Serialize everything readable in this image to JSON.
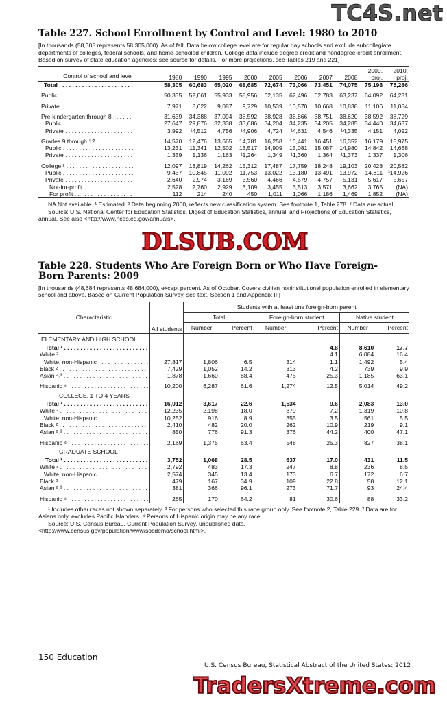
{
  "t227": {
    "title": "Table 227. School Enrollment by Control and Level: 1980 to 2010",
    "headnote": "[In thousands (58,305 represents 58,305,000). As of fall. Data below college level are for regular day schools and exclude subcollegiate departments of colleges, federal schools, and home-schooled children. College data include degree-credit and nondegree-credit enrollment. Based on survey of state education agencies; see source for details. For more projections, see Tables 219 and 221]",
    "stub_header": "Control of school and level",
    "columns": [
      "1980",
      "1990",
      "1995",
      "2000",
      "2005",
      "2006",
      "2007",
      "2008",
      "2009, proj.",
      "2010, proj."
    ],
    "rows": [
      {
        "label": "Total",
        "bold": true,
        "values": [
          "58,305",
          "60,683",
          "65,020",
          "68,685",
          "72,674",
          "73,066",
          "73,451",
          "74,075",
          "75,198",
          "75,286"
        ]
      },
      {
        "label": "Public",
        "gap": true,
        "values": [
          "50,335",
          "52,061",
          "55,933",
          "58,956",
          "62,135",
          "62,496",
          "62,783",
          "63,237",
          "64,092",
          "64,231"
        ]
      },
      {
        "label": "Private",
        "gap": true,
        "values": [
          "7,971",
          "8,622",
          "9,087",
          "9,729",
          "10,539",
          "10,570",
          "10,668",
          "10,838",
          "11,106",
          "11,054"
        ]
      },
      {
        "label": "Pre-kindergarten through 8",
        "gap": true,
        "values": [
          "31,639",
          "34,388",
          "37,094",
          "38,592",
          "38,928",
          "38,866",
          "38,751",
          "38,620",
          "38,592",
          "38,729"
        ]
      },
      {
        "label": "Public",
        "indent": 1,
        "values": [
          "27,647",
          "29,876",
          "32,338",
          "33,686",
          "34,204",
          "34,235",
          "34,205",
          "34,285",
          "34,440",
          "34,637"
        ]
      },
      {
        "label": "Private",
        "indent": 1,
        "values": [
          "3,992",
          "¹4,512",
          "4,756",
          "¹4,906",
          "4,724",
          "¹4,631",
          "4,546",
          "¹4,335",
          "4,151",
          "4,092"
        ]
      },
      {
        "label": "Grades 9 through 12",
        "gap": true,
        "values": [
          "14,570",
          "12,476",
          "13,665",
          "14,781",
          "16,258",
          "16,441",
          "16,451",
          "16,352",
          "16,179",
          "15,975"
        ]
      },
      {
        "label": "Public",
        "indent": 1,
        "values": [
          "13,231",
          "11,341",
          "12,502",
          "13,517",
          "14,909",
          "15,081",
          "15,087",
          "14,980",
          "14,842",
          "14,668"
        ]
      },
      {
        "label": "Private",
        "indent": 1,
        "values": [
          "1,339",
          "1,136",
          "1,163",
          "¹1,264",
          "1,349",
          "¹1,360",
          "1,364",
          "¹1,373",
          "1,337",
          "1,306"
        ]
      },
      {
        "label": "College ²",
        "gap": true,
        "values": [
          "12,097",
          "13,819",
          "14,262",
          "15,312",
          "17,487",
          "17,759",
          "18,248",
          "19,103",
          "20,428",
          "20,582"
        ]
      },
      {
        "label": "Public",
        "indent": 1,
        "values": [
          "9,457",
          "10,845",
          "11,092",
          "11,753",
          "13,022",
          "13,180",
          "13,491",
          "13,972",
          "14,811",
          "³14,926"
        ]
      },
      {
        "label": "Private",
        "indent": 1,
        "values": [
          "2,640",
          "2,974",
          "3,169",
          "3,560",
          "4,466",
          "4,579",
          "4,757",
          "5,131",
          "5,617",
          "5,657"
        ]
      },
      {
        "label": "Not-for-profit",
        "indent": 2,
        "values": [
          "2,528",
          "2,760",
          "2,929",
          "3,109",
          "3,455",
          "3,513",
          "3,571",
          "3,662",
          "3,765",
          "(NA)"
        ]
      },
      {
        "label": "For profit",
        "indent": 2,
        "values": [
          "112",
          "214",
          "240",
          "450",
          "1,011",
          "1,066",
          "1,186",
          "1,469",
          "1,852",
          "(NA)"
        ]
      }
    ],
    "footnote": "NA Not available. ¹ Estimated. ² Data beginning 2000, reflects new classification system. See footnote 1, Table 278. ³ Data are actual.",
    "source": "Source: U.S. National Center for Education Statistics, Digest of Education Statistics, annual, and Projections of Education Statistics, annual. See also <http://www.nces.ed.gov/annuals>."
  },
  "t228": {
    "title": "Table 228. Students Who Are Foreign Born or Who Have Foreign-Born Parents: 2009",
    "headnote": "[In thousands (48,684 represents 48,684,000), except percent. As of October. Covers civilian noninstitutional population enrolled in elementary school and above. Based on Current Population Survey, see  text, Section 1 and Appendix III]",
    "stub_header": "Characteristic",
    "all_students": "All students",
    "spanner": "Students with at least one foreign-born parent",
    "groups": [
      "Total",
      "Foreign-born student",
      "Native student"
    ],
    "sub": [
      "Number",
      "Percent"
    ],
    "sections": [
      {
        "name": "ELEMENTARY AND HIGH SCHOOL",
        "rows": [
          {
            "label": "Total ¹",
            "bold": true,
            "values": [
              "",
              "",
              "",
              "",
              "4.8",
              "8,610",
              "17.7"
            ]
          },
          {
            "label": "White ²",
            "values": [
              "",
              "",
              "",
              "",
              "4.1",
              "6,084",
              "16.4"
            ]
          },
          {
            "label": "White, non-Hispanic",
            "indent": 1,
            "values": [
              "27,817",
              "1,806",
              "6.5",
              "314",
              "1.1",
              "1,492",
              "5.4"
            ]
          },
          {
            "label": "Black ²",
            "values": [
              "7,429",
              "1,052",
              "14.2",
              "313",
              "4.2",
              "739",
              "9.9"
            ]
          },
          {
            "label": "Asian ²˒³",
            "values": [
              "1,878",
              "1,660",
              "88.4",
              "475",
              "25.3",
              "1,185",
              "63.1"
            ]
          },
          {
            "label": "Hispanic ⁴",
            "gap": true,
            "values": [
              "10,200",
              "6,287",
              "61.6",
              "1,274",
              "12.5",
              "5,014",
              "49.2"
            ]
          }
        ]
      },
      {
        "name": "COLLEGE, 1 TO 4 YEARS",
        "rows": [
          {
            "label": "Total ¹",
            "bold": true,
            "values": [
              "16,012",
              "3,617",
              "22.6",
              "1,534",
              "9.6",
              "2,083",
              "13.0"
            ]
          },
          {
            "label": "White ²",
            "values": [
              "12,235",
              "2,198",
              "18.0",
              "879",
              "7.2",
              "1,319",
              "10.8"
            ]
          },
          {
            "label": "White, non-Hispanic",
            "indent": 1,
            "values": [
              "10,252",
              "916",
              "8.9",
              "355",
              "3.5",
              "561",
              "5.5"
            ]
          },
          {
            "label": "Black ²",
            "values": [
              "2,410",
              "482",
              "20.0",
              "262",
              "10.9",
              "219",
              "9.1"
            ]
          },
          {
            "label": "Asian ²˒³",
            "values": [
              "850",
              "776",
              "91.3",
              "376",
              "44.2",
              "400",
              "47.1"
            ]
          },
          {
            "label": "Hispanic ⁴",
            "gap": true,
            "values": [
              "2,169",
              "1,375",
              "63.4",
              "548",
              "25.3",
              "827",
              "38.1"
            ]
          }
        ]
      },
      {
        "name": "GRADUATE SCHOOL",
        "rows": [
          {
            "label": "Total ¹",
            "bold": true,
            "values": [
              "3,752",
              "1,068",
              "28.5",
              "637",
              "17.0",
              "431",
              "11.5"
            ]
          },
          {
            "label": "White ²",
            "values": [
              "2,792",
              "483",
              "17.3",
              "247",
              "8.8",
              "236",
              "8.5"
            ]
          },
          {
            "label": "White, non-Hispanic",
            "indent": 1,
            "values": [
              "2,574",
              "345",
              "13.4",
              "173",
              "6.7",
              "172",
              "6.7"
            ]
          },
          {
            "label": "Black ²",
            "values": [
              "479",
              "167",
              "34.9",
              "109",
              "22.8",
              "58",
              "12.1"
            ]
          },
          {
            "label": "Asian ²˒³",
            "values": [
              "381",
              "366",
              "96.1",
              "273",
              "71.7",
              "93",
              "24.4"
            ]
          },
          {
            "label": "Hispanic ⁴",
            "gap": true,
            "values": [
              "265",
              "170",
              "64.2",
              "81",
              "30.6",
              "88",
              "33.2"
            ]
          }
        ]
      }
    ],
    "footnote": "¹ Includes other races not shown separately. ² For persons who selected this race group only. See footnote 2, Table 229. ³ Data are for Asians only, excludes Pacific Islanders. ⁴ Persons of Hispanic origin may be any race.",
    "source": "Source: U.S. Census Bureau, Current Population Survey, unpublished data, <http://www.census.gov/population/www/socdemo/school.html>."
  },
  "footer": {
    "page": "150  Education",
    "publication": "U.S. Census Bureau, Statistical Abstract of the United States: 2012"
  },
  "watermarks": {
    "top": "TC4S.net",
    "middle": "DLSUB.COM",
    "bottom": "TradersXtreme.com",
    "color": "#d42027"
  }
}
